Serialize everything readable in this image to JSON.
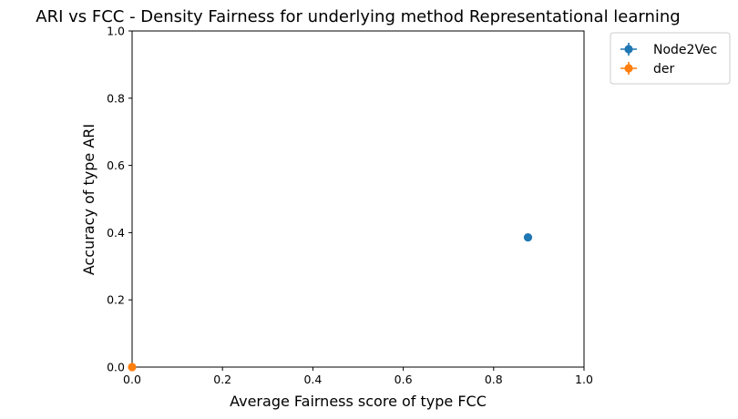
{
  "chart_data": {
    "type": "scatter",
    "title": "ARI vs FCC - Density Fairness for underlying method Representational learning",
    "xlabel": "Average Fairness score of type FCC",
    "ylabel": "Accuracy of type ARI",
    "xlim": [
      0.0,
      1.0
    ],
    "ylim": [
      0.0,
      1.0
    ],
    "xticks": [
      "0.0",
      "0.2",
      "0.4",
      "0.6",
      "0.8",
      "1.0"
    ],
    "yticks": [
      "0.0",
      "0.2",
      "0.4",
      "0.6",
      "0.8",
      "1.0"
    ],
    "grid": false,
    "legend_position": "outside-top-right",
    "series": [
      {
        "name": "Node2Vec",
        "color": "#1f77b4",
        "x": 0.876,
        "y": 0.386
      },
      {
        "name": "der",
        "color": "#ff7f0e",
        "x": 0.0,
        "y": 0.0
      }
    ]
  }
}
